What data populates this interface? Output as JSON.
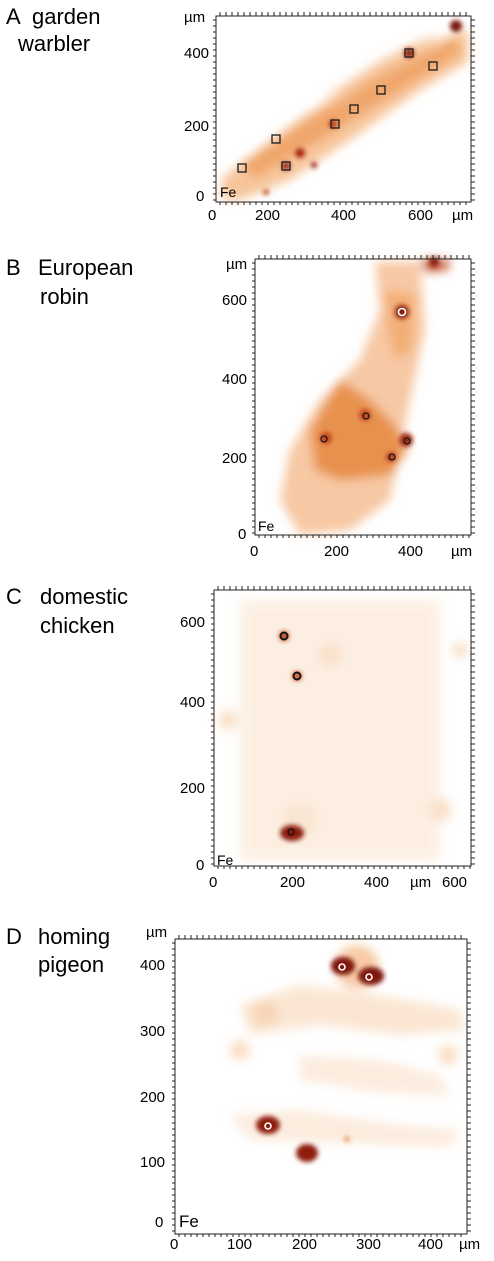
{
  "panels": [
    {
      "letter": "A",
      "species_line1": "garden",
      "species_line2": "warbler",
      "x_ticks": [
        "0",
        "200",
        "400",
        "600"
      ],
      "y_ticks": [
        "0",
        "200",
        "400"
      ],
      "unit": "µm",
      "element": "Fe",
      "marker": "square"
    },
    {
      "letter": "B",
      "species_line1": "European",
      "species_line2": "robin",
      "x_ticks": [
        "0",
        "200",
        "400"
      ],
      "y_ticks": [
        "0",
        "200",
        "400",
        "600"
      ],
      "unit": "µm",
      "element": "Fe",
      "marker": "circle"
    },
    {
      "letter": "C",
      "species_line1": "domestic",
      "species_line2": "chicken",
      "x_ticks": [
        "0",
        "200",
        "400",
        "600"
      ],
      "y_ticks": [
        "0",
        "200",
        "400",
        "600"
      ],
      "unit": "µm",
      "element": "Fe",
      "marker": "circle"
    },
    {
      "letter": "D",
      "species_line1": "homing",
      "species_line2": "pigeon",
      "x_ticks": [
        "0",
        "100",
        "200",
        "300",
        "400"
      ],
      "y_ticks": [
        "0",
        "100",
        "200",
        "300",
        "400"
      ],
      "unit": "µm",
      "element": "Fe",
      "marker": "circle"
    }
  ],
  "colors": {
    "heat_light": "#f7c9a0",
    "heat_mid": "#e8843a",
    "heat_dark": "#9b1d0c",
    "frame": "#222222"
  }
}
